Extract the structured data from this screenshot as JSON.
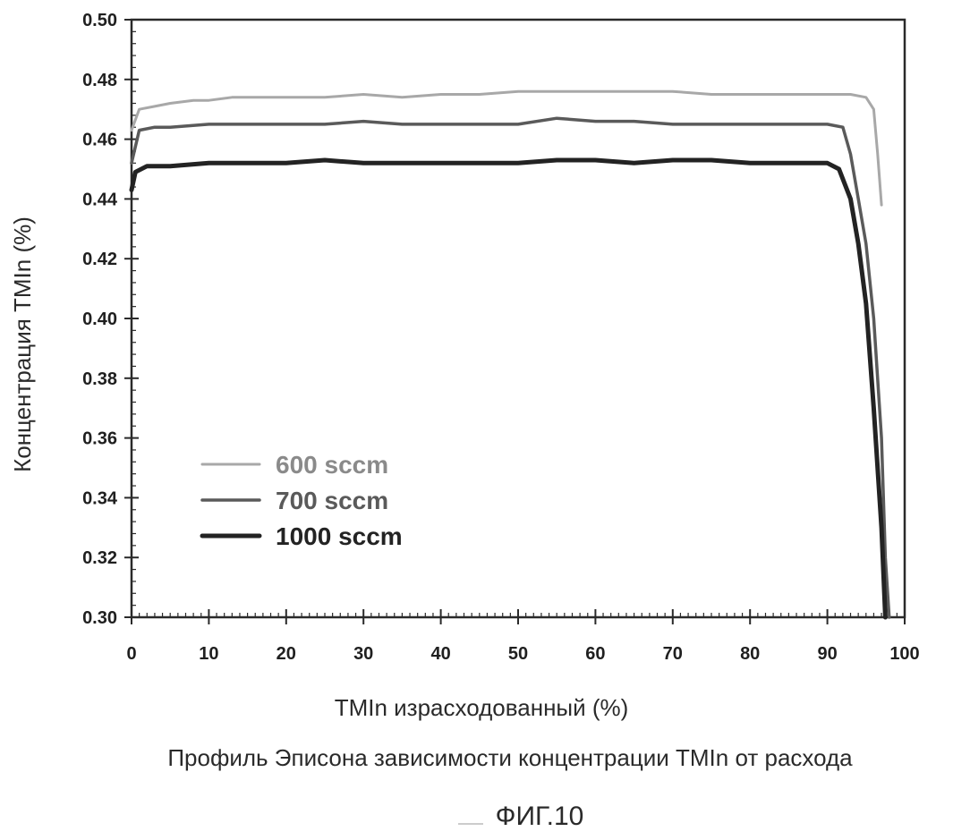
{
  "chart_data": {
    "type": "line",
    "title": "",
    "xlabel": "TMIn израсходованный (%)",
    "ylabel": "Концентрация TMIn (%)",
    "xlim": [
      0,
      100
    ],
    "ylim": [
      0.3,
      0.5
    ],
    "xticks": [
      "0",
      "10",
      "20",
      "30",
      "40",
      "50",
      "60",
      "70",
      "80",
      "90",
      "100"
    ],
    "yticks": [
      "0.30",
      "0.32",
      "0.34",
      "0.36",
      "0.38",
      "0.40",
      "0.42",
      "0.44",
      "0.46",
      "0.48",
      "0.50"
    ],
    "grid": false,
    "legend_position": "lower-left",
    "series": [
      {
        "name": "600 sccm",
        "color": "#a8a8a8",
        "x": [
          0,
          1,
          3,
          5,
          8,
          10,
          13,
          16,
          20,
          25,
          30,
          35,
          40,
          45,
          50,
          55,
          60,
          65,
          70,
          75,
          80,
          85,
          90,
          93,
          95,
          96,
          96.5,
          97
        ],
        "y": [
          0.463,
          0.47,
          0.471,
          0.472,
          0.473,
          0.473,
          0.474,
          0.474,
          0.474,
          0.474,
          0.475,
          0.474,
          0.475,
          0.475,
          0.476,
          0.476,
          0.476,
          0.476,
          0.476,
          0.475,
          0.475,
          0.475,
          0.475,
          0.475,
          0.474,
          0.47,
          0.455,
          0.438
        ]
      },
      {
        "name": "700 sccm",
        "color": "#5a5a5a",
        "x": [
          0,
          1,
          3,
          5,
          10,
          15,
          20,
          25,
          30,
          35,
          40,
          45,
          50,
          55,
          60,
          65,
          70,
          75,
          80,
          85,
          90,
          92,
          93,
          94,
          95,
          96,
          97,
          97.5,
          98
        ],
        "y": [
          0.452,
          0.463,
          0.464,
          0.464,
          0.465,
          0.465,
          0.465,
          0.465,
          0.466,
          0.465,
          0.465,
          0.465,
          0.465,
          0.467,
          0.466,
          0.466,
          0.465,
          0.465,
          0.465,
          0.465,
          0.465,
          0.464,
          0.455,
          0.44,
          0.425,
          0.4,
          0.36,
          0.32,
          0.3
        ]
      },
      {
        "name": "1000 sccm",
        "color": "#232323",
        "x": [
          0,
          0.5,
          2,
          5,
          10,
          15,
          20,
          25,
          30,
          35,
          40,
          45,
          50,
          55,
          60,
          65,
          70,
          75,
          80,
          85,
          90,
          91.5,
          93,
          94,
          95,
          96,
          97,
          97.5
        ],
        "y": [
          0.443,
          0.449,
          0.451,
          0.451,
          0.452,
          0.452,
          0.452,
          0.453,
          0.452,
          0.452,
          0.452,
          0.452,
          0.452,
          0.453,
          0.453,
          0.452,
          0.453,
          0.453,
          0.452,
          0.452,
          0.452,
          0.45,
          0.44,
          0.425,
          0.405,
          0.37,
          0.33,
          0.3
        ]
      }
    ]
  },
  "caption": "Профиль Эписона зависимости концентрации TMIn от расхода",
  "figure_label": "ФИГ.10"
}
